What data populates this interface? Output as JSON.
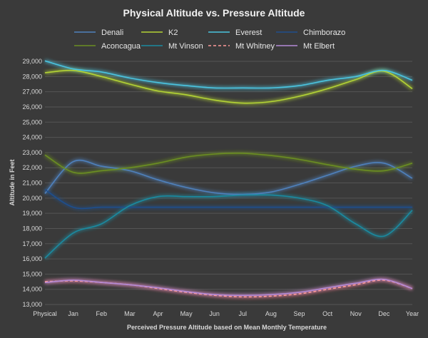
{
  "chart_data": {
    "type": "line",
    "title": "Physical Altitude vs. Pressure Altitude",
    "xlabel": "Perceived Pressure Altitude based on Mean Monthly Temperature",
    "ylabel": "Altitude in Feet",
    "categories": [
      "Physical",
      "Jan",
      "Feb",
      "Mar",
      "Apr",
      "May",
      "Jun",
      "Jul",
      "Aug",
      "Sep",
      "Oct",
      "Nov",
      "Dec",
      "Year"
    ],
    "ylim": [
      13000,
      29000
    ],
    "yticks": [
      13000,
      14000,
      15000,
      16000,
      17000,
      18000,
      19000,
      20000,
      21000,
      22000,
      23000,
      24000,
      25000,
      26000,
      27000,
      28000,
      29000
    ],
    "ytick_labels": [
      "13,000",
      "14,000",
      "15,000",
      "16,000",
      "17,000",
      "18,000",
      "19,000",
      "20,000",
      "21,000",
      "22,000",
      "23,000",
      "24,000",
      "25,000",
      "26,000",
      "27,000",
      "28,000",
      "29,000"
    ],
    "grid": true,
    "legend_position": "top",
    "series": [
      {
        "name": "Denali",
        "color": "#4f81bd",
        "dashed": false,
        "values": [
          20300,
          22400,
          22100,
          21800,
          21200,
          20700,
          20350,
          20250,
          20400,
          20900,
          21500,
          22100,
          22300,
          21300
        ]
      },
      {
        "name": "K2",
        "color": "#b3d335",
        "dashed": false,
        "values": [
          28250,
          28400,
          28000,
          27500,
          27050,
          26800,
          26450,
          26250,
          26350,
          26700,
          27200,
          27800,
          28350,
          27200
        ]
      },
      {
        "name": "Everest",
        "color": "#4bc4e0",
        "dashed": false,
        "values": [
          29035,
          28500,
          28300,
          27900,
          27600,
          27400,
          27250,
          27250,
          27250,
          27400,
          27750,
          28000,
          28400,
          27750
        ]
      },
      {
        "name": "Chimborazo",
        "color": "#1f4e8c",
        "dashed": false,
        "values": [
          20565,
          19400,
          19400,
          19400,
          19400,
          19400,
          19400,
          19400,
          19400,
          19400,
          19400,
          19400,
          19400,
          19400
        ]
      },
      {
        "name": "Aconcagua",
        "color": "#6b8e23",
        "dashed": false,
        "values": [
          22840,
          21700,
          21800,
          22000,
          22300,
          22700,
          22900,
          22950,
          22800,
          22550,
          22200,
          21900,
          21800,
          22300
        ]
      },
      {
        "name": "Mt Vinson",
        "color": "#1b8aa0",
        "dashed": false,
        "values": [
          16050,
          17700,
          18300,
          19500,
          20100,
          20100,
          20100,
          20200,
          20200,
          20000,
          19500,
          18300,
          17500,
          19200
        ]
      },
      {
        "name": "Mt Whitney",
        "color": "#e06666",
        "dashed": true,
        "values": [
          14505,
          14550,
          14450,
          14300,
          14050,
          13800,
          13600,
          13500,
          13550,
          13700,
          14000,
          14300,
          14600,
          14050
        ]
      },
      {
        "name": "Mt Elbert",
        "color": "#b48ad6",
        "dashed": false,
        "values": [
          14440,
          14600,
          14450,
          14300,
          14100,
          13850,
          13650,
          13600,
          13650,
          13800,
          14100,
          14400,
          14650,
          14050
        ]
      }
    ]
  }
}
